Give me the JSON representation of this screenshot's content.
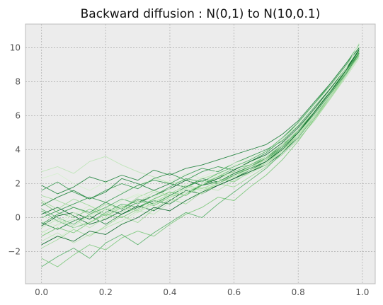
{
  "chart_data": {
    "type": "line",
    "title": "Backward diffusion : N(0,1) to N(10,0.1)",
    "xlabel": "",
    "ylabel": "",
    "xlim": [
      -0.05,
      1.04
    ],
    "ylim": [
      -3.9,
      11.4
    ],
    "x_ticks": [
      0.0,
      0.2,
      0.4,
      0.6,
      0.8,
      1.0
    ],
    "x_tick_labels": [
      "0.0",
      "0.2",
      "0.4",
      "0.6",
      "0.8",
      "1.0"
    ],
    "y_ticks": [
      -2,
      0,
      2,
      4,
      6,
      8,
      10
    ],
    "y_tick_labels": [
      "−2",
      "0",
      "2",
      "4",
      "6",
      "8",
      "10"
    ],
    "grid": true,
    "background": "#ececec",
    "colors": [
      "#d6efd0",
      "#bde5b6",
      "#a1d99b",
      "#7dc87c",
      "#5ab26a",
      "#3a9a52",
      "#23843f",
      "#0f6a2e"
    ],
    "x": [
      0.0,
      0.05,
      0.1,
      0.15,
      0.2,
      0.25,
      0.3,
      0.35,
      0.4,
      0.45,
      0.5,
      0.55,
      0.6,
      0.65,
      0.7,
      0.75,
      0.8,
      0.85,
      0.9,
      0.95,
      0.99
    ],
    "series": [
      {
        "values": [
          2.3,
          2.6,
          2.0,
          1.6,
          2.1,
          1.5,
          1.9,
          2.3,
          2.1,
          2.6,
          2.3,
          2.5,
          3.1,
          3.3,
          3.6,
          4.4,
          5.5,
          6.6,
          7.8,
          8.9,
          9.8
        ]
      },
      {
        "values": [
          2.7,
          3.0,
          2.6,
          3.3,
          3.6,
          3.1,
          2.7,
          2.4,
          2.0,
          2.2,
          1.9,
          2.3,
          2.6,
          2.9,
          3.5,
          4.1,
          5.2,
          6.4,
          7.4,
          8.7,
          9.6
        ]
      },
      {
        "values": [
          1.3,
          1.0,
          0.6,
          0.2,
          0.8,
          0.5,
          1.2,
          1.6,
          1.3,
          1.8,
          1.6,
          2.0,
          2.4,
          2.8,
          3.2,
          4.0,
          4.8,
          6.0,
          7.2,
          8.5,
          9.5
        ]
      },
      {
        "values": [
          0.9,
          0.3,
          0.0,
          0.5,
          0.1,
          0.6,
          1.0,
          0.7,
          1.2,
          1.5,
          1.9,
          2.3,
          2.1,
          2.7,
          3.2,
          3.9,
          4.9,
          6.1,
          7.3,
          8.6,
          9.7
        ]
      },
      {
        "values": [
          0.4,
          -0.2,
          -0.6,
          -0.3,
          0.3,
          0.8,
          0.6,
          1.1,
          1.5,
          1.3,
          2.0,
          2.4,
          2.9,
          3.1,
          3.6,
          4.3,
          5.0,
          6.2,
          7.5,
          8.8,
          9.9
        ]
      },
      {
        "values": [
          0.0,
          0.4,
          0.8,
          1.2,
          0.9,
          1.4,
          1.9,
          2.2,
          2.0,
          2.5,
          2.9,
          2.7,
          3.2,
          3.6,
          4.0,
          4.5,
          5.4,
          6.5,
          7.6,
          8.8,
          9.9
        ]
      },
      {
        "values": [
          -0.3,
          -0.7,
          -0.2,
          0.1,
          -0.4,
          0.2,
          0.6,
          1.0,
          0.8,
          1.4,
          1.9,
          2.1,
          2.6,
          3.0,
          3.4,
          4.2,
          5.1,
          6.2,
          7.4,
          8.6,
          9.5
        ]
      },
      {
        "values": [
          -0.5,
          0.1,
          0.3,
          -0.1,
          0.5,
          0.2,
          0.7,
          0.4,
          1.0,
          1.6,
          1.4,
          1.9,
          2.3,
          2.7,
          3.1,
          3.8,
          4.8,
          5.9,
          7.1,
          8.4,
          9.6
        ]
      },
      {
        "values": [
          -0.8,
          -1.2,
          -0.6,
          -0.2,
          0.0,
          -0.4,
          0.3,
          0.9,
          1.3,
          1.0,
          1.6,
          2.2,
          2.4,
          2.9,
          3.4,
          4.0,
          4.9,
          6.1,
          7.3,
          8.5,
          9.7
        ]
      },
      {
        "values": [
          -1.4,
          -0.9,
          -1.5,
          -1.0,
          -0.6,
          -0.2,
          0.4,
          0.2,
          0.9,
          1.4,
          1.8,
          1.6,
          2.2,
          2.6,
          3.1,
          3.9,
          4.8,
          5.8,
          7.0,
          8.3,
          9.4
        ]
      },
      {
        "values": [
          -1.8,
          -1.3,
          -0.7,
          -1.1,
          -0.5,
          0.1,
          -0.3,
          0.5,
          1.1,
          0.8,
          1.5,
          2.0,
          1.8,
          2.4,
          3.0,
          3.7,
          4.6,
          5.7,
          7.0,
          8.4,
          9.8
        ]
      },
      {
        "values": [
          -2.4,
          -2.9,
          -2.2,
          -1.6,
          -1.9,
          -1.2,
          -0.8,
          -1.1,
          -0.4,
          0.2,
          0.6,
          1.2,
          1.0,
          1.8,
          2.5,
          3.4,
          4.5,
          5.8,
          7.1,
          8.5,
          9.6
        ]
      },
      {
        "values": [
          -2.9,
          -2.3,
          -1.8,
          -2.4,
          -1.5,
          -1.0,
          -1.6,
          -0.9,
          -0.3,
          0.3,
          0.0,
          0.8,
          1.5,
          2.2,
          2.9,
          3.8,
          4.7,
          5.9,
          7.2,
          8.6,
          9.9
        ]
      },
      {
        "values": [
          1.6,
          2.1,
          1.5,
          1.1,
          1.6,
          2.0,
          1.7,
          2.3,
          2.6,
          2.2,
          2.7,
          3.0,
          2.8,
          3.3,
          3.8,
          4.6,
          5.6,
          6.7,
          7.8,
          9.0,
          10.0
        ]
      },
      {
        "values": [
          0.7,
          1.2,
          1.6,
          1.1,
          1.5,
          2.3,
          2.0,
          1.6,
          2.0,
          1.8,
          2.3,
          2.1,
          2.6,
          3.0,
          3.5,
          4.3,
          5.2,
          6.3,
          7.5,
          8.7,
          9.7
        ]
      },
      {
        "values": [
          0.2,
          0.6,
          0.1,
          -0.4,
          -0.1,
          0.4,
          0.9,
          1.3,
          1.7,
          2.2,
          1.9,
          2.3,
          2.8,
          3.3,
          3.7,
          4.4,
          5.3,
          6.4,
          7.6,
          8.8,
          9.8
        ]
      },
      {
        "values": [
          -0.2,
          -0.5,
          0.2,
          0.7,
          0.4,
          1.0,
          1.3,
          1.0,
          1.6,
          2.0,
          2.4,
          2.8,
          3.2,
          3.5,
          3.9,
          4.6,
          5.5,
          6.6,
          7.7,
          8.9,
          10.1
        ]
      },
      {
        "values": [
          -0.6,
          -0.1,
          -0.5,
          0.1,
          0.6,
          0.3,
          0.9,
          1.5,
          1.2,
          1.7,
          2.3,
          2.6,
          2.4,
          2.9,
          3.3,
          4.0,
          4.9,
          6.0,
          7.2,
          8.5,
          9.5
        ]
      },
      {
        "values": [
          1.0,
          0.5,
          1.1,
          0.7,
          0.2,
          0.7,
          0.4,
          0.9,
          1.4,
          1.9,
          1.7,
          2.1,
          2.5,
          3.0,
          3.4,
          4.1,
          5.0,
          6.1,
          7.3,
          8.6,
          9.6
        ]
      },
      {
        "values": [
          -1.1,
          -0.6,
          -0.9,
          -0.3,
          0.2,
          0.0,
          0.5,
          1.1,
          1.5,
          1.3,
          1.9,
          2.4,
          2.7,
          3.1,
          3.5,
          4.2,
          5.1,
          6.3,
          7.5,
          8.7,
          9.8
        ]
      },
      {
        "values": [
          0.5,
          0.0,
          -0.4,
          0.2,
          0.6,
          1.1,
          0.8,
          1.3,
          1.8,
          2.3,
          2.1,
          2.6,
          3.0,
          3.4,
          3.9,
          4.7,
          5.6,
          6.7,
          7.9,
          9.1,
          10.2
        ]
      },
      {
        "values": [
          -0.4,
          0.2,
          0.6,
          0.3,
          0.9,
          0.5,
          1.1,
          0.8,
          1.3,
          1.8,
          2.2,
          2.0,
          2.5,
          2.9,
          3.3,
          4.1,
          5.0,
          6.1,
          7.3,
          8.5,
          9.7
        ]
      },
      {
        "values": [
          1.9,
          1.4,
          1.8,
          2.4,
          2.1,
          2.5,
          2.2,
          2.8,
          2.5,
          2.9,
          3.1,
          3.4,
          3.7,
          4.0,
          4.3,
          4.9,
          5.7,
          6.8,
          7.9,
          9.1,
          10.0
        ]
      },
      {
        "values": [
          -1.6,
          -1.1,
          -1.4,
          -0.8,
          -1.0,
          -0.4,
          0.0,
          0.6,
          0.4,
          1.0,
          1.5,
          1.9,
          2.3,
          2.8,
          3.3,
          4.0,
          5.0,
          6.2,
          7.4,
          8.7,
          9.9
        ]
      },
      {
        "values": [
          0.1,
          -0.3,
          0.3,
          0.0,
          0.5,
          1.0,
          1.4,
          1.2,
          1.7,
          1.5,
          2.0,
          2.5,
          2.9,
          3.2,
          3.6,
          4.3,
          5.2,
          6.3,
          7.5,
          8.8,
          10.3
        ]
      },
      {
        "values": [
          -0.9,
          -0.4,
          -0.1,
          -0.6,
          0.0,
          0.6,
          0.3,
          0.8,
          1.2,
          1.7,
          1.4,
          2.0,
          2.4,
          2.8,
          3.2,
          3.9,
          4.8,
          5.9,
          7.1,
          8.4,
          9.5
        ]
      }
    ]
  }
}
